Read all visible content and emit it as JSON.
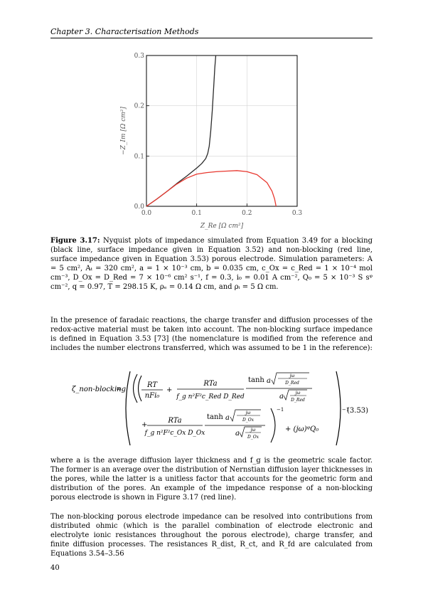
{
  "header": {
    "running_title": "Chapter 3.  Characterisation Methods"
  },
  "chart_data": {
    "type": "line",
    "xlabel": "Z_Re [Ω cm²]",
    "ylabel": "−Z_Im [Ω cm²]",
    "xlim": [
      0.0,
      0.3
    ],
    "ylim": [
      0.0,
      0.3
    ],
    "x_ticks": [
      "0.0",
      "0.1",
      "0.2",
      "0.3"
    ],
    "y_ticks": [
      "0.0",
      "0.1",
      "0.2",
      "0.3"
    ],
    "series": [
      {
        "color": "#2b2b2b",
        "x": [
          0.0,
          0.02,
          0.04,
          0.06,
          0.08,
          0.1,
          0.11,
          0.118,
          0.122,
          0.125,
          0.128,
          0.131,
          0.134,
          0.136,
          0.138
        ],
        "y": [
          0.0,
          0.014,
          0.029,
          0.045,
          0.06,
          0.076,
          0.085,
          0.095,
          0.105,
          0.12,
          0.15,
          0.19,
          0.24,
          0.275,
          0.3
        ]
      },
      {
        "color": "#e8382f",
        "x": [
          0.0,
          0.02,
          0.04,
          0.06,
          0.08,
          0.1,
          0.12,
          0.14,
          0.16,
          0.18,
          0.2,
          0.22,
          0.24,
          0.25,
          0.255,
          0.258
        ],
        "y": [
          0.0,
          0.014,
          0.029,
          0.044,
          0.056,
          0.064,
          0.067,
          0.069,
          0.07,
          0.071,
          0.069,
          0.063,
          0.047,
          0.03,
          0.015,
          0.0
        ]
      }
    ]
  },
  "caption": {
    "label": "Figure 3.17:",
    "text": "Nyquist plots of impedance simulated from Equation 3.49 for a blocking (black line, surface impedance given in Equation 3.52) and non-blocking (red line, surface impedance given in Equation 3.53) porous electrode. Simulation parameters: A = 5 cm², Aₜ = 320 cm², a = 1 × 10⁻³ cm, b = 0.035 cm, c_Ox = c_Red = 1 × 10⁻⁴ mol cm⁻³, D_Ox = D_Red = 7 × 10⁻⁶ cm² s⁻¹, f = 0.3, i₀ = 0.01 A cm⁻², Q₀ = 5 × 10⁻³ S sᵠ cm⁻², q = 0.97, T = 298.15 K, ρₑ = 0.14 Ω cm, and ρᵢ = 5 Ω cm."
  },
  "body": {
    "p1": "In the presence of faradaic reactions, the charge transfer and diffusion processes of the redox-active material must be taken into account. The non-blocking surface impedance is defined in Equation 3.53 [73] (the nomenclature is modified from the reference and includes the number electrons transferred, which was assumed to be 1 in the reference):",
    "p2": "where a is the average diffusion layer thickness and f_g is the geometric scale factor. The former is an average over the distribution of Nernstian diffusion layer thicknesses in the pores, while the latter is a unitless factor that accounts for the geometric form and distribution of the pores. An example of the impedance response of a non-blocking porous electrode is shown in Figure 3.17 (red line).",
    "p3": "The non-blocking porous electrode impedance can be resolved into contributions from distributed ohmic (which is the parallel combination of electrode electronic and electrolyte ionic resistances throughout the porous electrode), charge transfer, and finite diffusion processes. The resistances R_dist, R_ct, and R_fd are calculated from Equations 3.54–3.56"
  },
  "equation": {
    "lhs": "ζ_non-blocking",
    "t1_num": "RT",
    "t1_den": "nFi₀",
    "t2_num": "RTa",
    "t2_den": "f_g n²F²c_Red D_Red",
    "t3_num": "RTa",
    "t3_den": "f_g n²F²c_Ox D_Ox",
    "tanh": "tanh",
    "jw": "jω",
    "d_red": "D_Red",
    "d_ox": "D_Ox",
    "a": "a",
    "exp_inner": "−1",
    "exp_outer": "−1",
    "cpe": "+ (jω)ᵠQ₀",
    "number": "(3.53)"
  },
  "page": {
    "number": "40"
  }
}
